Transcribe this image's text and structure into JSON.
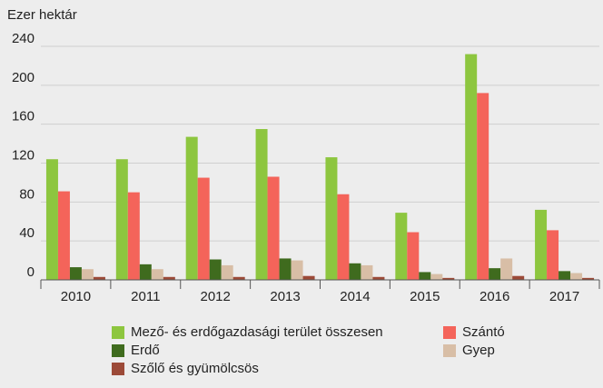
{
  "chart_data": {
    "type": "bar",
    "y_label": "Ezer hektár",
    "categories": [
      "2010",
      "2011",
      "2012",
      "2013",
      "2014",
      "2015",
      "2016",
      "2017"
    ],
    "series": [
      {
        "name": "Mező- és erdőgazdasági terület összesen",
        "color": "#8dc63f",
        "values": [
          124,
          124,
          147,
          155,
          126,
          69,
          232,
          72
        ]
      },
      {
        "name": "Szántó",
        "color": "#f4645a",
        "values": [
          91,
          90,
          105,
          106,
          88,
          49,
          192,
          51
        ]
      },
      {
        "name": "Erdő",
        "color": "#3f6b1e",
        "values": [
          13,
          16,
          21,
          22,
          17,
          8,
          12,
          9
        ]
      },
      {
        "name": "Gyep",
        "color": "#d8bea6",
        "values": [
          11,
          11,
          15,
          20,
          15,
          6,
          22,
          7
        ]
      },
      {
        "name": "Szőlő és gyümölcsös",
        "color": "#9c4a38",
        "values": [
          3,
          3,
          3,
          4,
          3,
          2,
          4,
          2
        ]
      }
    ],
    "ylim": [
      0,
      240
    ],
    "yticks": [
      0,
      40,
      80,
      120,
      160,
      200,
      240
    ],
    "grid": true,
    "legend": "bottom"
  }
}
